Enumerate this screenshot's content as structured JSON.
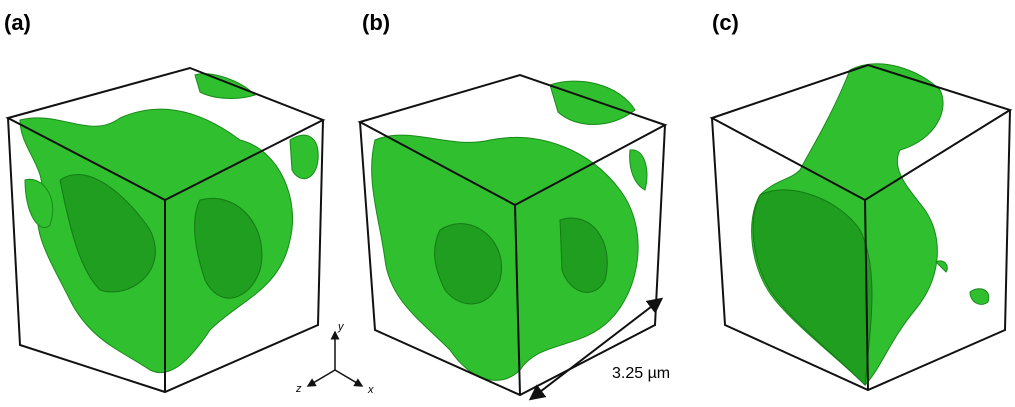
{
  "panels": [
    {
      "label": "(a)"
    },
    {
      "label": "(b)"
    },
    {
      "label": "(c)"
    }
  ],
  "scale_bar": {
    "label": "3.25 µm"
  },
  "axes": {
    "y": "y",
    "z": "z",
    "x": "x"
  }
}
